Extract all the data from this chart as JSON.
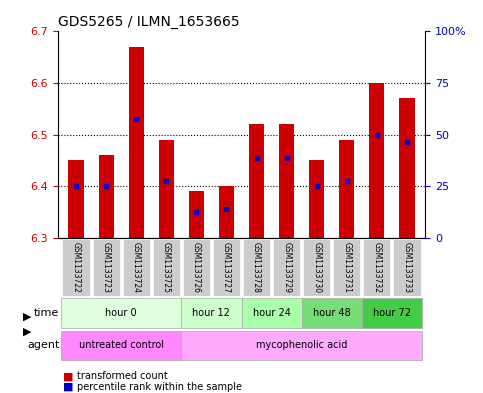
{
  "title": "GDS5265 / ILMN_1653665",
  "samples": [
    "GSM1133722",
    "GSM1133723",
    "GSM1133724",
    "GSM1133725",
    "GSM1133726",
    "GSM1133727",
    "GSM1133728",
    "GSM1133729",
    "GSM1133730",
    "GSM1133731",
    "GSM1133732",
    "GSM1133733"
  ],
  "bar_values": [
    6.45,
    6.46,
    6.67,
    6.49,
    6.39,
    6.4,
    6.52,
    6.52,
    6.45,
    6.49,
    6.6,
    6.57
  ],
  "bar_base": 6.3,
  "percentile_values": [
    6.4,
    6.4,
    6.53,
    6.41,
    6.35,
    6.355,
    6.455,
    6.455,
    6.4,
    6.41,
    6.5,
    6.485
  ],
  "ylim": [
    6.3,
    6.7
  ],
  "yticks_left": [
    6.3,
    6.4,
    6.5,
    6.6,
    6.7
  ],
  "yticks_right": [
    0,
    25,
    50,
    75,
    100
  ],
  "ytick_right_labels": [
    "0",
    "25",
    "50",
    "75",
    "100%"
  ],
  "bar_color": "#cc0000",
  "percentile_color": "#0000cc",
  "title_color": "#000000",
  "left_tick_color": "#cc0000",
  "right_tick_color": "#0000cc",
  "grid_color": "#000000",
  "time_groups": [
    {
      "label": "hour 0",
      "start": 0,
      "end": 4,
      "color": "#ccffcc"
    },
    {
      "label": "hour 12",
      "start": 4,
      "end": 6,
      "color": "#ccffcc"
    },
    {
      "label": "hour 24",
      "start": 6,
      "end": 8,
      "color": "#99ff99"
    },
    {
      "label": "hour 48",
      "start": 8,
      "end": 10,
      "color": "#66cc66"
    },
    {
      "label": "hour 72",
      "start": 10,
      "end": 12,
      "color": "#33cc33"
    }
  ],
  "agent_groups": [
    {
      "label": "untreated control",
      "start": 0,
      "end": 4,
      "color": "#ff99ff"
    },
    {
      "label": "mycophenolic acid",
      "start": 4,
      "end": 12,
      "color": "#ff99ff"
    }
  ],
  "legend_red_label": "transformed count",
  "legend_blue_label": "percentile rank within the sample",
  "time_label": "time",
  "agent_label": "agent",
  "sample_bg_color": "#cccccc",
  "agent_untreated_color": "#ff88ff",
  "agent_myco_color": "#ffaaff",
  "hour0_color": "#ddffdd",
  "hour12_color": "#ccffcc",
  "hour24_color": "#aaffaa",
  "hour48_color": "#77dd77",
  "hour72_color": "#44cc44"
}
